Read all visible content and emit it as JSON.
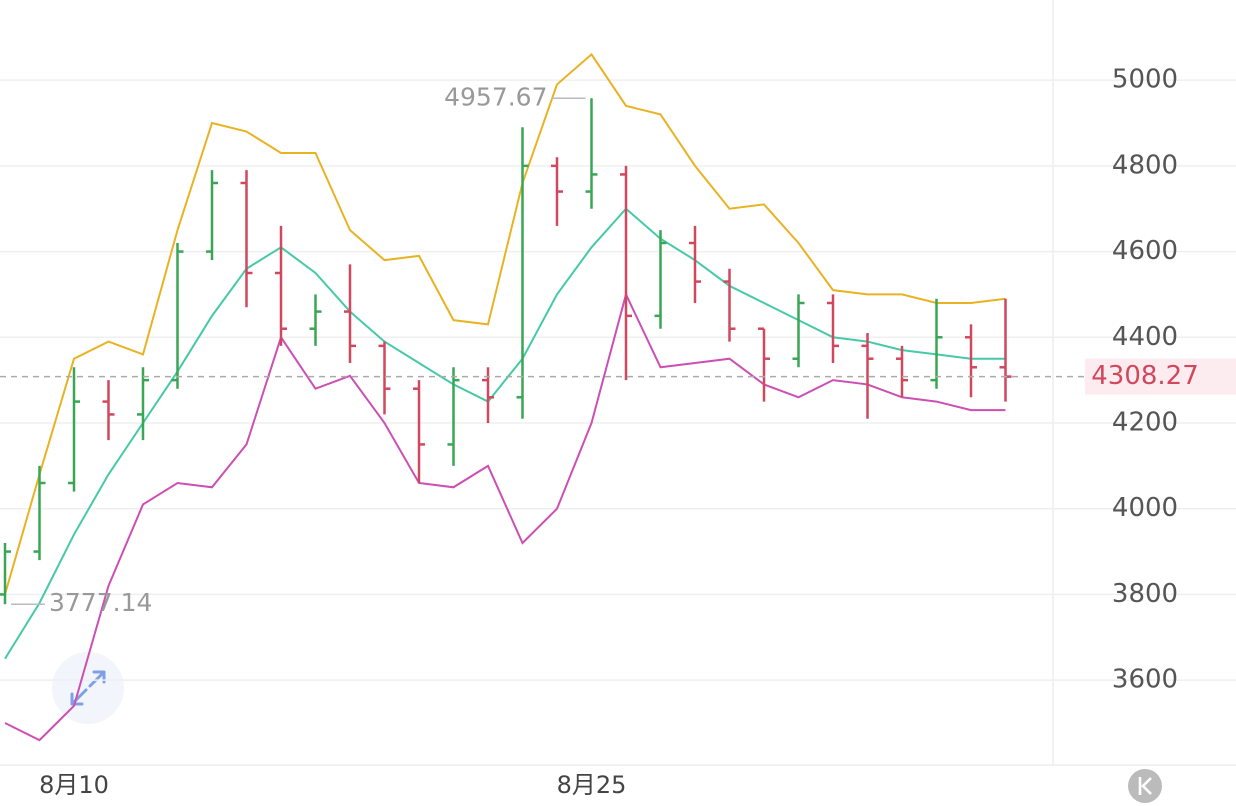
{
  "chart_data": {
    "type": "ohlc",
    "categories": [
      null,
      null,
      "8月10",
      null,
      null,
      null,
      null,
      null,
      null,
      null,
      null,
      null,
      null,
      null,
      null,
      null,
      null,
      "8月25",
      null,
      null,
      null,
      null,
      null,
      null,
      null,
      null,
      null,
      null,
      null,
      null
    ],
    "open": [
      3800,
      3900,
      4060,
      4250,
      4220,
      4300,
      4600,
      4760,
      4550,
      4420,
      4460,
      4380,
      4280,
      4150,
      4300,
      4260,
      4800,
      4740,
      4780,
      4450,
      4620,
      4530,
      4420,
      4350,
      4480,
      4380,
      4350,
      4300,
      4400,
      4330
    ],
    "high": [
      3920,
      4100,
      4330,
      4300,
      4330,
      4620,
      4790,
      4790,
      4660,
      4500,
      4570,
      4390,
      4300,
      4330,
      4330,
      4890,
      4820,
      4957.67,
      4800,
      4650,
      4660,
      4560,
      4420,
      4500,
      4500,
      4410,
      4380,
      4490,
      4430,
      4490
    ],
    "low": [
      3777.14,
      3880,
      4040,
      4160,
      4160,
      4280,
      4580,
      4470,
      4380,
      4380,
      4340,
      4220,
      4060,
      4100,
      4200,
      4210,
      4660,
      4700,
      4300,
      4420,
      4480,
      4390,
      4250,
      4330,
      4340,
      4210,
      4260,
      4280,
      4260,
      4250
    ],
    "close": [
      3900,
      4060,
      4250,
      4220,
      4300,
      4600,
      4760,
      4550,
      4420,
      4460,
      4380,
      4280,
      4150,
      4300,
      4260,
      4800,
      4740,
      4780,
      4450,
      4620,
      4530,
      4420,
      4350,
      4480,
      4380,
      4350,
      4300,
      4400,
      4330,
      4308.27
    ],
    "up_color": "#3aa655",
    "down_color": "#d0485e",
    "bands": [
      {
        "color": "#e8b323",
        "values": [
          3800,
          4080,
          4350,
          4390,
          4360,
          4650,
          4900,
          4880,
          4830,
          4830,
          4650,
          4580,
          4590,
          4440,
          4430,
          4760,
          4990,
          5060,
          4940,
          4920,
          4800,
          4700,
          4710,
          4620,
          4510,
          4500,
          4500,
          4480,
          4480,
          4490
        ]
      },
      {
        "color": "#45c9a6",
        "values": [
          3650,
          3780,
          3940,
          4080,
          4200,
          4320,
          4450,
          4560,
          4610,
          4550,
          4460,
          4390,
          4340,
          4290,
          4250,
          4350,
          4500,
          4610,
          4700,
          4630,
          4580,
          4520,
          4480,
          4440,
          4400,
          4390,
          4370,
          4360,
          4350,
          4350
        ]
      },
      {
        "color": "#cc4fb4",
        "values": [
          3500,
          3460,
          3540,
          3820,
          4010,
          4060,
          4050,
          4150,
          4400,
          4280,
          4310,
          4200,
          4060,
          4050,
          4100,
          3920,
          4000,
          4200,
          4500,
          4330,
          4340,
          4350,
          4290,
          4260,
          4300,
          4290,
          4260,
          4250,
          4230,
          4230
        ]
      }
    ],
    "ylim": [
      3402,
      5187
    ],
    "yticks": [
      3600,
      3800,
      4000,
      4200,
      4400,
      4600,
      4800,
      5000
    ],
    "grid": true,
    "last_price_line": true,
    "last_price_color": "#d0485e"
  }
}
